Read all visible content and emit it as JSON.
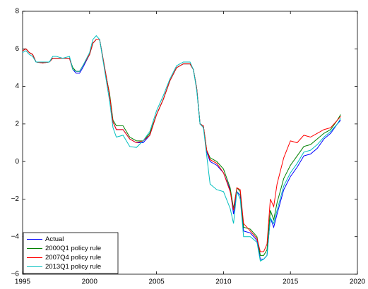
{
  "chart_data": {
    "type": "line",
    "x": [
      1995,
      1995.25,
      1995.5,
      1995.75,
      1996,
      1996.5,
      1997,
      1997.25,
      1997.5,
      1998,
      1998.5,
      1998.75,
      1999,
      1999.25,
      1999.5,
      2000,
      2000.25,
      2000.5,
      2000.75,
      2001,
      2001.25,
      2001.5,
      2001.75,
      2002,
      2002.5,
      2003,
      2003.5,
      2004,
      2004.5,
      2005,
      2005.5,
      2006,
      2006.5,
      2007,
      2007.5,
      2007.75,
      2008,
      2008.25,
      2008.5,
      2008.75,
      2009,
      2009.5,
      2010,
      2010.5,
      2010.75,
      2011,
      2011.25,
      2011.5,
      2012,
      2012.5,
      2012.75,
      2013,
      2013.25,
      2013.5,
      2013.75,
      2014,
      2014.5,
      2015,
      2015.5,
      2016,
      2016.5,
      2017,
      2017.5,
      2018,
      2018.5,
      2018.75
    ],
    "series": [
      {
        "name": "Actual",
        "color": "#0000ff",
        "values": [
          5.9,
          6.0,
          5.8,
          5.7,
          5.3,
          5.25,
          5.3,
          5.5,
          5.5,
          5.5,
          5.5,
          4.9,
          4.7,
          4.7,
          5.0,
          5.7,
          6.3,
          6.5,
          6.5,
          5.5,
          4.5,
          3.5,
          2.1,
          1.7,
          1.7,
          1.2,
          1.0,
          1.0,
          1.4,
          2.5,
          3.3,
          4.3,
          5.0,
          5.2,
          5.2,
          4.9,
          3.9,
          2.0,
          1.9,
          0.5,
          0.0,
          -0.2,
          -0.6,
          -1.5,
          -2.8,
          -1.6,
          -1.8,
          -3.7,
          -3.8,
          -4.2,
          -5.2,
          -5.2,
          -5.0,
          -3.0,
          -3.5,
          -2.8,
          -1.5,
          -0.8,
          -0.3,
          0.3,
          0.4,
          0.7,
          1.2,
          1.5,
          2.0,
          2.2
        ]
      },
      {
        "name": "2000Q1 policy rule",
        "color": "#008000",
        "values": [
          5.9,
          6.0,
          5.8,
          5.7,
          5.3,
          5.25,
          5.3,
          5.5,
          5.5,
          5.5,
          5.5,
          5.0,
          4.8,
          4.8,
          5.1,
          5.7,
          6.3,
          6.5,
          6.5,
          5.5,
          4.5,
          3.6,
          2.2,
          1.9,
          1.9,
          1.3,
          1.1,
          1.1,
          1.5,
          2.5,
          3.3,
          4.3,
          5.0,
          5.2,
          5.2,
          4.9,
          3.9,
          2.0,
          1.9,
          0.6,
          0.2,
          0.0,
          -0.4,
          -1.4,
          -2.5,
          -1.4,
          -1.6,
          -3.5,
          -3.6,
          -4.0,
          -5.0,
          -5.0,
          -4.7,
          -2.6,
          -3.1,
          -2.2,
          -0.9,
          -0.2,
          0.3,
          0.8,
          0.9,
          1.2,
          1.5,
          1.7,
          2.2,
          2.5
        ]
      },
      {
        "name": "2007Q4 policy rule",
        "color": "#ff0000",
        "values": [
          5.9,
          6.0,
          5.8,
          5.7,
          5.3,
          5.25,
          5.3,
          5.5,
          5.5,
          5.5,
          5.5,
          4.9,
          4.8,
          4.8,
          5.1,
          5.7,
          6.3,
          6.5,
          6.5,
          5.5,
          4.5,
          3.5,
          2.1,
          1.7,
          1.7,
          1.2,
          1.0,
          1.1,
          1.4,
          2.5,
          3.3,
          4.3,
          5.0,
          5.2,
          5.2,
          4.9,
          3.9,
          2.0,
          1.9,
          0.6,
          0.1,
          -0.1,
          -0.6,
          -1.6,
          -2.6,
          -1.4,
          -1.5,
          -3.3,
          -3.7,
          -4.1,
          -4.8,
          -4.8,
          -4.4,
          -2.0,
          -2.4,
          -1.2,
          0.2,
          1.1,
          1.0,
          1.4,
          1.3,
          1.5,
          1.7,
          1.8,
          2.2,
          2.4
        ]
      },
      {
        "name": "2013Q1 policy rule",
        "color": "#00bfbf",
        "values": [
          5.8,
          5.9,
          5.7,
          5.6,
          5.3,
          5.3,
          5.3,
          5.6,
          5.6,
          5.5,
          5.6,
          4.9,
          4.8,
          4.8,
          5.1,
          5.8,
          6.5,
          6.7,
          6.5,
          5.4,
          4.3,
          3.2,
          1.8,
          1.3,
          1.4,
          0.8,
          0.75,
          1.1,
          1.6,
          2.7,
          3.5,
          4.4,
          5.1,
          5.3,
          5.3,
          4.9,
          3.8,
          2.0,
          1.8,
          0.3,
          -1.2,
          -1.5,
          -1.6,
          -2.5,
          -3.3,
          -1.6,
          -2.0,
          -4.0,
          -4.0,
          -4.3,
          -5.3,
          -5.2,
          -5.0,
          -3.0,
          -3.3,
          -2.6,
          -1.3,
          -0.6,
          -0.1,
          0.5,
          0.6,
          0.9,
          1.3,
          1.6,
          2.0,
          2.3
        ]
      }
    ],
    "xlim": [
      1995,
      2020
    ],
    "xticks": [
      1995,
      2000,
      2005,
      2010,
      2015,
      2020
    ],
    "ylim": [
      -6,
      8
    ],
    "yticks": [
      {
        "value": -6,
        "label": "−6"
      },
      {
        "value": -4,
        "label": "−4"
      },
      {
        "value": -2,
        "label": "−2"
      },
      0,
      2,
      4,
      6,
      8
    ],
    "legend": "lower-left"
  }
}
